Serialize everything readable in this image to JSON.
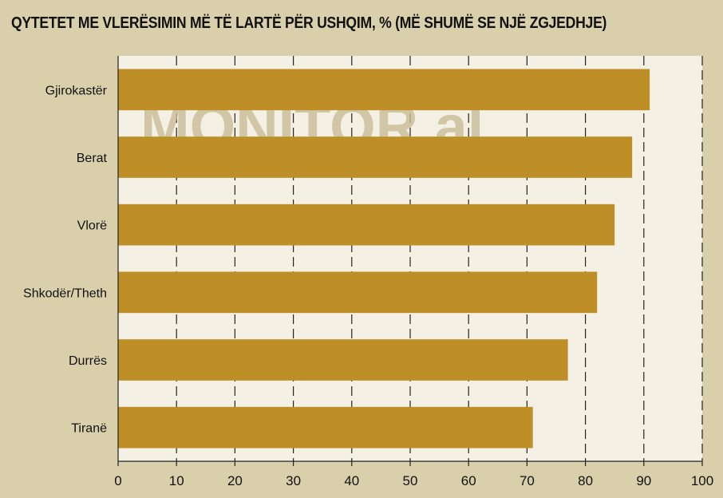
{
  "watermark": "MONITOR.al",
  "colors": {
    "background": "#d9cfaa",
    "plot_area": "#f4f1e4",
    "bar": "#be8e27",
    "gridline": "#222222"
  },
  "chart_data": {
    "type": "bar",
    "orientation": "horizontal",
    "title": "QYTETET ME VLERËSIMIN MË TË LARTË PËR USHQIM, % (MË SHUMË SE NJË ZGJEDHJE)",
    "categories": [
      "Gjirokastër",
      "Berat",
      "Vlorë",
      "Shkodër/Theth",
      "Durrës",
      "Tiranë"
    ],
    "values": [
      91,
      88,
      85,
      82,
      77,
      71
    ],
    "xlim": [
      0,
      100
    ],
    "xticks": [
      0,
      10,
      20,
      30,
      40,
      50,
      60,
      70,
      80,
      90,
      100
    ],
    "grid": "vertical-dashed",
    "legend": "none"
  }
}
